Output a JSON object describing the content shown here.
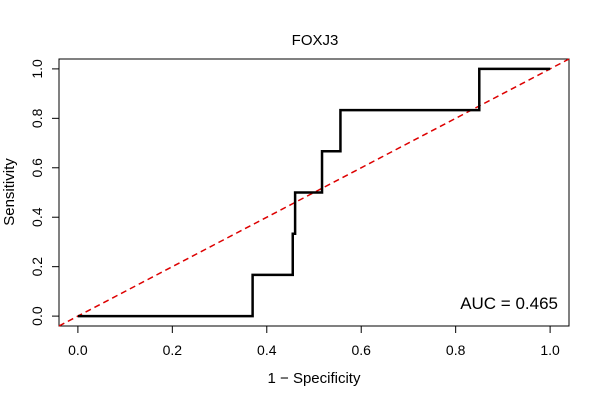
{
  "chart_data": {
    "type": "line",
    "title": "FOXJ3",
    "xlabel": "1 − Specificity",
    "ylabel": "Sensitivity",
    "xlim": [
      -0.04,
      1.04
    ],
    "ylim": [
      -0.04,
      1.04
    ],
    "x_ticks": [
      0.0,
      0.2,
      0.4,
      0.6,
      0.8,
      1.0
    ],
    "y_ticks": [
      0.0,
      0.2,
      0.4,
      0.6,
      0.8,
      1.0
    ],
    "x_tick_labels": [
      "0.0",
      "0.2",
      "0.4",
      "0.6",
      "0.8",
      "1.0"
    ],
    "y_tick_labels": [
      "0.0",
      "0.2",
      "0.4",
      "0.6",
      "0.8",
      "1.0"
    ],
    "series": [
      {
        "name": "ROC curve",
        "color": "#000000",
        "x": [
          0.0,
          0.37,
          0.37,
          0.455,
          0.455,
          0.46,
          0.46,
          0.517,
          0.517,
          0.556,
          0.556,
          0.85,
          0.85,
          1.0
        ],
        "y": [
          0.0,
          0.0,
          0.167,
          0.167,
          0.333,
          0.333,
          0.5,
          0.5,
          0.667,
          0.667,
          0.833,
          0.833,
          1.0,
          1.0
        ]
      },
      {
        "name": "Chance line",
        "color": "#dd0000",
        "x": [
          -0.04,
          1.04
        ],
        "y": [
          -0.04,
          1.04
        ]
      }
    ],
    "annotation": "AUC = 0.465"
  }
}
